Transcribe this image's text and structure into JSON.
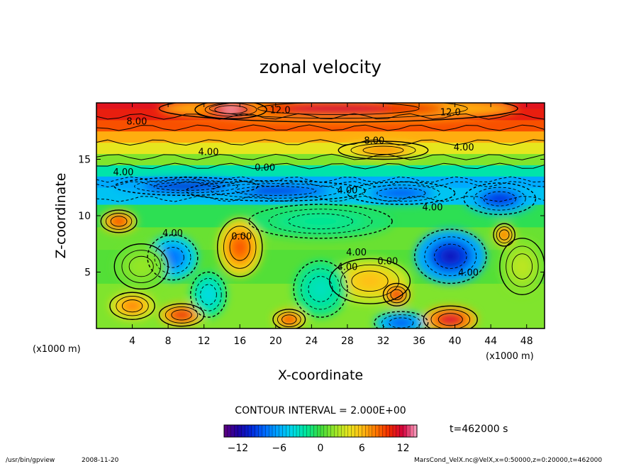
{
  "chart_data": {
    "type": "heatmap",
    "title": "zonal velocity",
    "xlabel": "X-coordinate",
    "ylabel": "Z-coordinate",
    "x_unit": "(x1000 m)",
    "y_unit": "(x1000 m)",
    "xlim": [
      0,
      50
    ],
    "ylim": [
      0,
      20
    ],
    "x_ticks": [
      4,
      8,
      12,
      16,
      20,
      24,
      28,
      32,
      36,
      40,
      44,
      48
    ],
    "y_ticks": [
      5,
      10,
      15
    ],
    "contour_labels": [
      {
        "text": "12.0",
        "x": 20.5,
        "y": 19.4
      },
      {
        "text": "12.0",
        "x": 39.5,
        "y": 19.2
      },
      {
        "text": "8.00",
        "x": 4.5,
        "y": 18.4
      },
      {
        "text": "8.00",
        "x": 31.0,
        "y": 16.7
      },
      {
        "text": "4.00",
        "x": 12.5,
        "y": 15.7
      },
      {
        "text": "4.00",
        "x": 41.0,
        "y": 16.1
      },
      {
        "text": "4.00",
        "x": 3.0,
        "y": 13.9
      },
      {
        "text": "0.00",
        "x": 18.8,
        "y": 14.3
      },
      {
        "text": "4.00",
        "x": 28.0,
        "y": 12.3
      },
      {
        "text": "4.00",
        "x": 37.5,
        "y": 10.8
      },
      {
        "text": "4.00",
        "x": 8.5,
        "y": 8.5
      },
      {
        "text": "0.00",
        "x": 16.2,
        "y": 8.2
      },
      {
        "text": "4.00",
        "x": 29.0,
        "y": 6.8
      },
      {
        "text": "4.00",
        "x": 28.0,
        "y": 5.5
      },
      {
        "text": "0.00",
        "x": 32.5,
        "y": 6.0
      },
      {
        "text": "4.00",
        "x": 41.5,
        "y": 5.0
      }
    ],
    "colorbar": {
      "min": -14,
      "max": 14,
      "ticks": [
        -12,
        -6,
        0,
        6,
        12
      ],
      "tick_labels": [
        "−12",
        "−6",
        "0",
        "6",
        "12"
      ]
    },
    "contour_interval_label": "CONTOUR INTERVAL = 2.000E+00",
    "time_label": "t=462000 s"
  },
  "footer": {
    "program": "/usr/bin/gpview",
    "date": "2008-11-20",
    "source": "MarsCond_VelX.nc@VelX,x=0:50000,z=0:20000,t=462000"
  }
}
